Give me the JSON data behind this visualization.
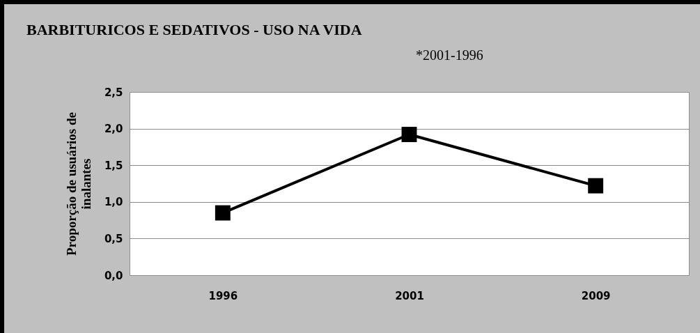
{
  "chart_data": {
    "type": "line",
    "title": "BARBITURICOS E SEDATIVOS - USO NA VIDA",
    "subtitle": "*2001-1996",
    "ylabel": "Proporção de usuários de inalantes",
    "categories": [
      "1996",
      "2001",
      "2009"
    ],
    "series": [
      {
        "color": "#000000",
        "values": [
          0.85,
          1.92,
          1.22
        ]
      }
    ],
    "ylim": [
      0,
      2.5
    ],
    "yticks": [
      {
        "value": 0,
        "label": "0,0"
      },
      {
        "value": 0.5,
        "label": "0,5"
      },
      {
        "value": 1,
        "label": "1,0"
      },
      {
        "value": 1.5,
        "label": "1,5"
      },
      {
        "value": 2,
        "label": "2,0"
      },
      {
        "value": 2.5,
        "label": "2,5"
      }
    ],
    "grid": "y",
    "marker": "square",
    "line_style": "solid"
  }
}
